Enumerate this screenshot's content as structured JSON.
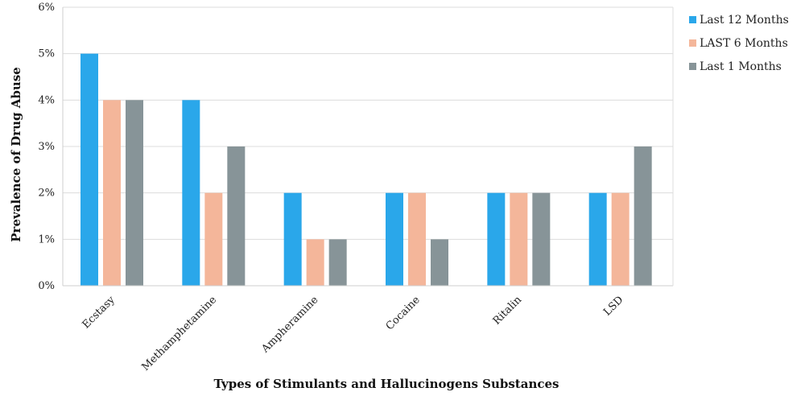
{
  "chart_data": {
    "type": "bar",
    "title": "",
    "xlabel": "Types of Stimulants and Hallucinogens Substances",
    "ylabel": "Prevalence of Drug Abuse",
    "categories": [
      "Ecstasy",
      "Methamphetamine",
      "Ampheramine",
      "Cocaine",
      "Ritalin",
      "LSD"
    ],
    "series": [
      {
        "name": "Last 12 Months",
        "color": "#2aa7ea",
        "values": [
          5,
          4,
          2,
          2,
          2,
          2
        ]
      },
      {
        "name": "LAST 6 Months",
        "color": "#f4b69a",
        "values": [
          4,
          2,
          1,
          2,
          2,
          2
        ]
      },
      {
        "name": "Last 1 Months",
        "color": "#879498",
        "values": [
          4,
          3,
          1,
          1,
          2,
          3
        ]
      }
    ],
    "ylim": [
      0,
      6
    ],
    "yticks": [
      "0%",
      "1%",
      "2%",
      "3%",
      "4%",
      "5%",
      "6%"
    ],
    "grid": true,
    "legend_position": "right"
  }
}
